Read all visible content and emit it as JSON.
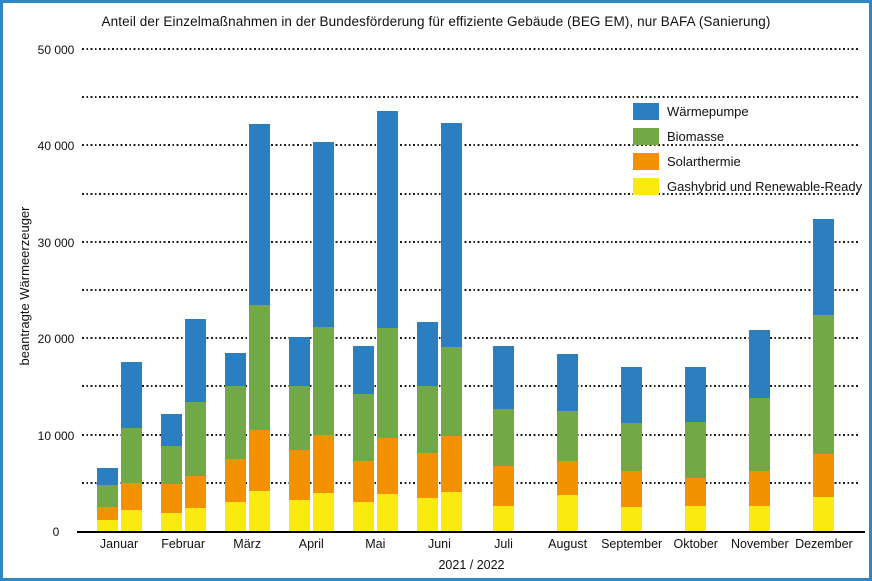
{
  "title": "Anteil der Einzelmaßnahmen in der Bundesförderung für effiziente Gebäude (BEG EM), nur BAFA (Sanierung)",
  "y_axis": {
    "title": "beantragte Wärmeerzeuger",
    "ticks": [
      {
        "value": 0,
        "label": "0"
      },
      {
        "value": 10000,
        "label": "10 000"
      },
      {
        "value": 20000,
        "label": "20 000"
      },
      {
        "value": 30000,
        "label": "30 000"
      },
      {
        "value": 40000,
        "label": "40 000"
      },
      {
        "value": 50000,
        "label": "50 000"
      }
    ]
  },
  "x_axis": {
    "title": "2021 / 2022"
  },
  "legend": [
    "Wärmepumpe",
    "Biomasse",
    "Solarthermie",
    "Gashybrid und Renewable-Ready"
  ],
  "chart_data": {
    "type": "bar",
    "stacked": true,
    "title": "Anteil der Einzelmaßnahmen in der Bundesförderung für effiziente Gebäude (BEG EM), nur BAFA (Sanierung)",
    "xlabel": "2021 / 2022",
    "ylabel": "beantragte Wärmeerzeuger",
    "ylim": [
      0,
      50000
    ],
    "grid": true,
    "grid_step": 5000,
    "legend_position": "upper right",
    "stack_series": [
      {
        "name": "Gashybrid und Renewable-Ready",
        "color": "#fbea10"
      },
      {
        "name": "Solarthermie",
        "color": "#f29200"
      },
      {
        "name": "Biomasse",
        "color": "#72a845"
      },
      {
        "name": "Wärmepumpe",
        "color": "#2b7fc0"
      }
    ],
    "months": [
      {
        "label": "Januar",
        "bars": [
          {
            "year": "2021",
            "segments": [
              1100,
              1400,
              2300,
              1700
            ]
          },
          {
            "year": "2022",
            "segments": [
              2200,
              2800,
              5700,
              6800
            ]
          }
        ]
      },
      {
        "label": "Februar",
        "bars": [
          {
            "year": "2021",
            "segments": [
              1900,
              3000,
              3900,
              3300
            ]
          },
          {
            "year": "2022",
            "segments": [
              2400,
              3300,
              7700,
              8600
            ]
          }
        ]
      },
      {
        "label": "März",
        "bars": [
          {
            "year": "2021",
            "segments": [
              3000,
              4500,
              7500,
              3500
            ]
          },
          {
            "year": "2022",
            "segments": [
              4100,
              6400,
              12900,
              18800
            ]
          }
        ]
      },
      {
        "label": "April",
        "bars": [
          {
            "year": "2021",
            "segments": [
              3200,
              5200,
              6600,
              5100
            ]
          },
          {
            "year": "2022",
            "segments": [
              3900,
              6100,
              11200,
              19200
            ]
          }
        ]
      },
      {
        "label": "Mai",
        "bars": [
          {
            "year": "2021",
            "segments": [
              3000,
              4300,
              6900,
              5000
            ]
          },
          {
            "year": "2022",
            "segments": [
              3800,
              5800,
              11500,
              22500
            ]
          }
        ]
      },
      {
        "label": "Juni",
        "bars": [
          {
            "year": "2021",
            "segments": [
              3400,
              4700,
              6900,
              6700
            ]
          },
          {
            "year": "2022",
            "segments": [
              4000,
              5900,
              9200,
              23200
            ]
          }
        ]
      },
      {
        "label": "Juli",
        "bars": [
          {
            "year": "2021",
            "segments": [
              2600,
              4100,
              6000,
              6500
            ]
          }
        ]
      },
      {
        "label": "August",
        "bars": [
          {
            "year": "2021",
            "segments": [
              3700,
              3600,
              5200,
              5900
            ]
          }
        ]
      },
      {
        "label": "September",
        "bars": [
          {
            "year": "2021",
            "segments": [
              2500,
              3700,
              5000,
              5800
            ]
          }
        ]
      },
      {
        "label": "Oktober",
        "bars": [
          {
            "year": "2021",
            "segments": [
              2600,
              2900,
              5800,
              5700
            ]
          }
        ]
      },
      {
        "label": "November",
        "bars": [
          {
            "year": "2021",
            "segments": [
              2600,
              3600,
              7600,
              7100
            ]
          }
        ]
      },
      {
        "label": "Dezember",
        "bars": [
          {
            "year": "2021",
            "segments": [
              3500,
              4500,
              14400,
              10000
            ]
          }
        ]
      }
    ]
  }
}
